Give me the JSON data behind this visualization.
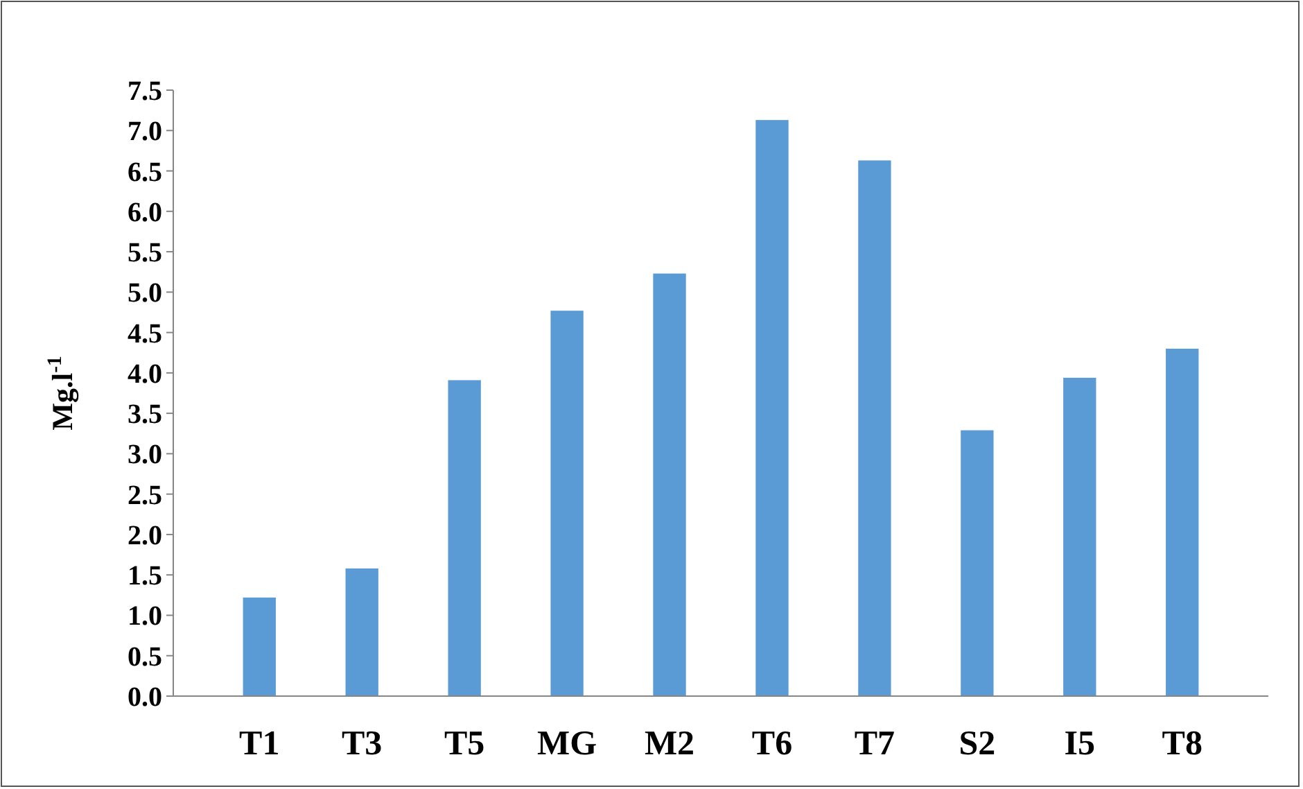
{
  "chart_data": {
    "type": "bar",
    "ylabel": "Mg.l$^{-1}$",
    "categories": [
      "T1",
      "T3",
      "T5",
      "MG",
      "M2",
      "T6",
      "T7",
      "S2",
      "I5",
      "T8"
    ],
    "values": [
      1.22,
      1.58,
      3.91,
      4.77,
      5.23,
      7.13,
      6.63,
      3.29,
      3.94,
      4.3
    ],
    "color": "#5b9bd5",
    "ylim": [
      0,
      7.5
    ],
    "yticks": [
      {
        "value": 0,
        "label": "0.0"
      },
      {
        "value": 0.5,
        "label": "0.5"
      },
      {
        "value": 1,
        "label": "1.0"
      },
      {
        "value": 1.5,
        "label": "1.5"
      },
      {
        "value": 2,
        "label": "2.0"
      },
      {
        "value": 2.5,
        "label": "2.5"
      },
      {
        "value": 3,
        "label": "3.0"
      },
      {
        "value": 3.5,
        "label": "3.5"
      },
      {
        "value": 4,
        "label": "4.0"
      },
      {
        "value": 4.5,
        "label": "4.5"
      },
      {
        "value": 5,
        "label": "5.0"
      },
      {
        "value": 5.5,
        "label": "5.5"
      },
      {
        "value": 6,
        "label": "6.0"
      },
      {
        "value": 6.5,
        "label": "6.5"
      },
      {
        "value": 7,
        "label": "7.0"
      },
      {
        "value": 7.5,
        "label": "7.5"
      }
    ],
    "grid": false
  }
}
